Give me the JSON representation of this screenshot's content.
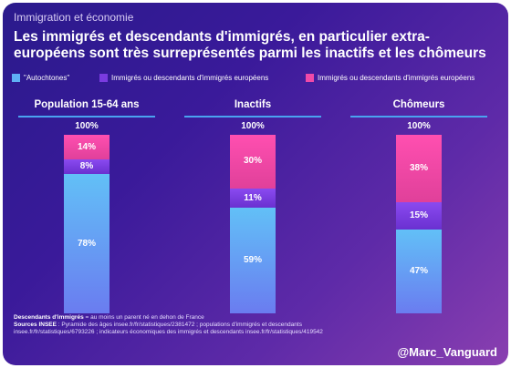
{
  "header": {
    "kicker": "Immigration et économie",
    "title": "Les immigrés et descendants d'immigrés, en particulier extra-européens sont très surreprésentés parmi les inactifs et les chômeurs"
  },
  "colors": {
    "autochtones": "#5fb0f5",
    "europeens": "#7a3be0",
    "extra_europeens": "#f04aa8",
    "rule": "#4aa3f0"
  },
  "legend": [
    {
      "label": "\"Autochtones\"",
      "color": "#5fb0f5"
    },
    {
      "label": "Immigrés ou descendants d'immigrés européens",
      "color": "#7a3be0"
    },
    {
      "label": "Immigrés ou descendants d'immigrés européens",
      "color": "#f04aa8"
    }
  ],
  "chart_data": {
    "type": "bar",
    "stacked": true,
    "categories": [
      "Population 15-64 ans",
      "Inactifs",
      "Chômeurs"
    ],
    "totals": [
      "100%",
      "100%",
      "100%"
    ],
    "series": [
      {
        "name": "\"Autochtones\"",
        "values": [
          78,
          59,
          47
        ],
        "labels": [
          "78%",
          "59%",
          "47%"
        ]
      },
      {
        "name": "Immigrés ou descendants d'immigrés européens",
        "values": [
          8,
          11,
          15
        ],
        "labels": [
          "8%",
          "11%",
          "15%"
        ]
      },
      {
        "name": "Immigrés ou descendants d'immigrés européens",
        "values": [
          14,
          30,
          38
        ],
        "labels": [
          "14%",
          "30%",
          "38%"
        ]
      }
    ],
    "ylim": [
      0,
      100
    ]
  },
  "footer": {
    "definition_label": "Descendants d'immigrés",
    "definition_text": " = au moins un parent né en dehon de France",
    "sources_label": "Sources INSEE",
    "sources_line1": " : Pyramide des âges insee.fr/fr/statistiques/2381472 ; populations d'immigrés et descendants",
    "sources_line2": "insee.fr/fr/statistiques/6793226 ; indicateurs économiques des immigrés et descendants insee.fr/fr/statistiques/419542"
  },
  "handle": "@Marc_Vanguard"
}
